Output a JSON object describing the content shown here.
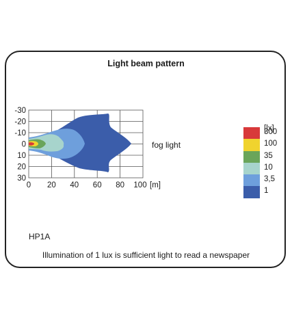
{
  "title": "Light beam pattern",
  "beam_label": "fog light",
  "model": "HP1A",
  "note": "Illumination of 1 lux is sufficient light to read a newspaper",
  "x_axis": {
    "ticks": [
      "0",
      "20",
      "40",
      "60",
      "80",
      "100"
    ],
    "unit": "[m]"
  },
  "y_axis": {
    "ticks": [
      "-30",
      "-20",
      "-10",
      "0",
      "10",
      "20",
      "30"
    ]
  },
  "legend": {
    "unit": "[lx]",
    "levels": [
      {
        "label": "300",
        "color": "#d8393a"
      },
      {
        "label": "100",
        "color": "#f0d32e"
      },
      {
        "label": "35",
        "color": "#6aa55a"
      },
      {
        "label": "10",
        "color": "#a7d4cc"
      },
      {
        "label": "3,5",
        "color": "#6e9fdc"
      },
      {
        "label": "1",
        "color": "#3b5daa"
      }
    ]
  }
}
